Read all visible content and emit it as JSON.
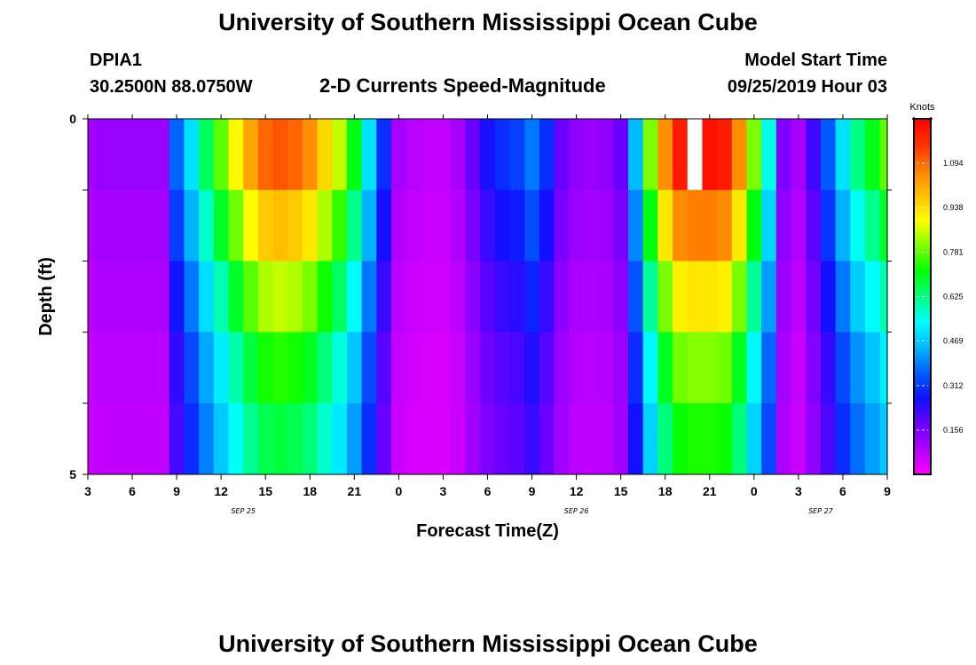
{
  "page": {
    "title_top": "University of Southern Mississippi Ocean Cube",
    "title_bottom": "University of Southern Mississippi Ocean Cube",
    "station_id": "DPIA1",
    "station_coords": "30.2500N 88.0750W",
    "plot_title": "2-D Currents Speed-Magnitude",
    "model_start_label": "Model Start Time",
    "model_start_value": "09/25/2019 Hour 03"
  },
  "colors": {
    "scale": [
      "#ff00ff",
      "#b000ff",
      "#6a00ff",
      "#1010ff",
      "#0060ff",
      "#00b8ff",
      "#00ffff",
      "#00ff80",
      "#00ff00",
      "#80ff00",
      "#ffff00",
      "#ffc000",
      "#ff8000",
      "#ff3000",
      "#ff0000"
    ],
    "missing": "#ffffff"
  },
  "chart_data": {
    "type": "heatmap",
    "title": "2-D Currents Speed-Magnitude",
    "xlabel": "Forecast Time(Z)",
    "ylabel": "Depth (ft)",
    "xlim": [
      0,
      54
    ],
    "ylim": [
      5,
      0
    ],
    "x_ticks": [
      {
        "pos": 0,
        "label": "3"
      },
      {
        "pos": 3,
        "label": "6"
      },
      {
        "pos": 6,
        "label": "9"
      },
      {
        "pos": 9,
        "label": "12"
      },
      {
        "pos": 12,
        "label": "15"
      },
      {
        "pos": 15,
        "label": "18"
      },
      {
        "pos": 18,
        "label": "21"
      },
      {
        "pos": 21,
        "label": "0"
      },
      {
        "pos": 24,
        "label": "3"
      },
      {
        "pos": 27,
        "label": "6"
      },
      {
        "pos": 30,
        "label": "9"
      },
      {
        "pos": 33,
        "label": "12"
      },
      {
        "pos": 36,
        "label": "15"
      },
      {
        "pos": 39,
        "label": "18"
      },
      {
        "pos": 42,
        "label": "21"
      },
      {
        "pos": 45,
        "label": "0"
      },
      {
        "pos": 48,
        "label": "3"
      },
      {
        "pos": 51,
        "label": "6"
      },
      {
        "pos": 54,
        "label": "9"
      }
    ],
    "date_labels": [
      {
        "pos": 10.5,
        "label": "SEP 25"
      },
      {
        "pos": 33,
        "label": "SEP 26"
      },
      {
        "pos": 49.5,
        "label": "SEP 27"
      }
    ],
    "y_ticks": [
      {
        "pos": 0,
        "label": "0"
      },
      {
        "pos": 5,
        "label": "5"
      }
    ],
    "y_minor_ticks": [
      1,
      2,
      3,
      4
    ],
    "depth_layers": [
      0.5,
      1.5,
      2.5,
      3.5,
      4.5
    ],
    "colorbar": {
      "unit": "Knots",
      "min": 0,
      "max": 1.25,
      "ticks": [
        0.156,
        0.312,
        0.469,
        0.625,
        0.781,
        0.938,
        1.094
      ],
      "tick_labels": [
        "0.156",
        "0.312",
        "0.469",
        "0.625",
        "0.781",
        "0.938",
        "1.094"
      ]
    },
    "profile": [
      0.1,
      0.12,
      0.12,
      0.12,
      0.12,
      0.12,
      0.36,
      0.5,
      0.65,
      0.78,
      0.9,
      1.02,
      1.1,
      1.12,
      1.1,
      1.05,
      0.95,
      0.85,
      0.7,
      0.5,
      0.3,
      0.1,
      0.08,
      0.07,
      0.07,
      0.1,
      0.18,
      0.26,
      0.3,
      0.32,
      0.38,
      0.3,
      0.18,
      0.13,
      0.12,
      0.13,
      0.18,
      0.45,
      0.8,
      1.05,
      1.2,
      1.22,
      1.22,
      1.2,
      1.05,
      0.8,
      0.55,
      0.15,
      0.1,
      0.22,
      0.35,
      0.5,
      0.62,
      0.7,
      0.78
    ],
    "depth_factors": [
      {
        "factor": 1.0,
        "floor": 0.0
      },
      {
        "factor": 0.88,
        "floor": 0.0
      },
      {
        "factor": 0.76,
        "floor": 0.0
      },
      {
        "factor": 0.66,
        "floor": 0.0
      },
      {
        "factor": 0.6,
        "floor": 0.0
      }
    ],
    "missing_cells": [
      {
        "x": 41,
        "layer": 0
      }
    ]
  }
}
